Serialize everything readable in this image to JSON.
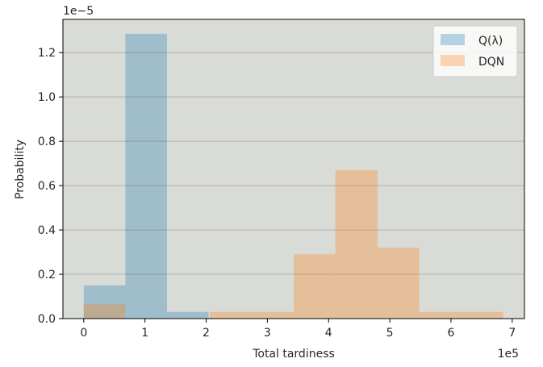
{
  "chart_data": {
    "type": "histogram",
    "xlabel": "Total tardiness",
    "ylabel": "Probability",
    "x_offset_label": "1e5",
    "y_offset_label": "1e−5",
    "xlim": [
      -0.34,
      7.2
    ],
    "ylim": [
      0,
      1.35
    ],
    "xticks": [
      0,
      1,
      2,
      3,
      4,
      5,
      6,
      7
    ],
    "yticks": [
      0.0,
      0.2,
      0.4,
      0.6,
      0.8,
      1.0,
      1.2
    ],
    "x_tick_labels": [
      "0",
      "1",
      "2",
      "3",
      "4",
      "5",
      "6",
      "7"
    ],
    "y_tick_labels": [
      "0.0",
      "0.2",
      "0.4",
      "0.6",
      "0.8",
      "1.0",
      "1.2"
    ],
    "grid": "horizontal",
    "legend": "top-right",
    "series": [
      {
        "name": "Q(λ)",
        "color": "#1f77b4",
        "alpha": 0.3,
        "bins": [
          {
            "x0": 0.0,
            "x1": 0.68,
            "value": 0.15
          },
          {
            "x0": 0.68,
            "x1": 1.36,
            "value": 1.285
          },
          {
            "x0": 1.36,
            "x1": 2.04,
            "value": 0.03
          }
        ]
      },
      {
        "name": "DQN",
        "color": "#ff7f0e",
        "alpha": 0.3,
        "bins": [
          {
            "x0": 0.0,
            "x1": 0.68,
            "value": 0.065
          },
          {
            "x0": 2.06,
            "x1": 2.745,
            "value": 0.03
          },
          {
            "x0": 2.745,
            "x1": 3.43,
            "value": 0.03
          },
          {
            "x0": 3.43,
            "x1": 4.11,
            "value": 0.29
          },
          {
            "x0": 4.11,
            "x1": 4.8,
            "value": 0.67
          },
          {
            "x0": 4.8,
            "x1": 5.48,
            "value": 0.32
          },
          {
            "x0": 5.48,
            "x1": 6.16,
            "value": 0.03
          },
          {
            "x0": 6.16,
            "x1": 6.85,
            "value": 0.03
          }
        ]
      }
    ]
  },
  "colors": {
    "plot_background": "#d9dbd6",
    "grid": "#b0b0b0",
    "axes": "#000000"
  }
}
